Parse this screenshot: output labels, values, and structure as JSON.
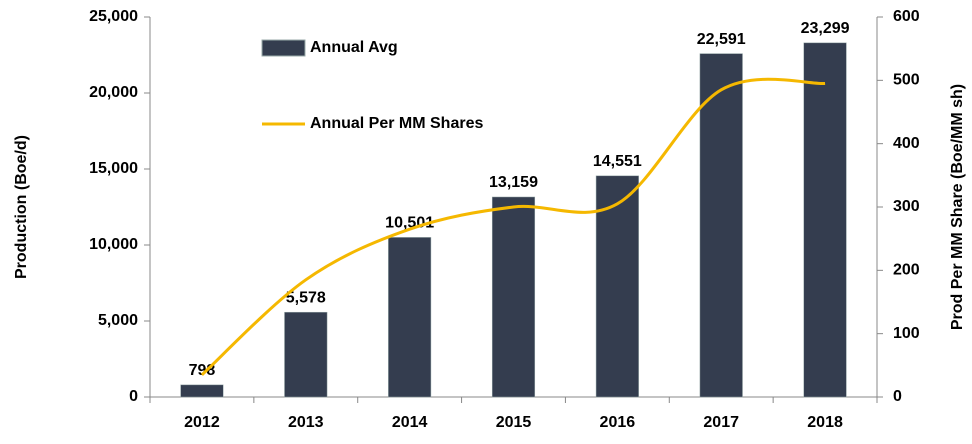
{
  "chart_data": {
    "type": "bar_line",
    "categories": [
      "2012",
      "2013",
      "2014",
      "2015",
      "2016",
      "2017",
      "2018"
    ],
    "series": [
      {
        "name": "Annual Avg",
        "type": "bar",
        "color": "#343d4f",
        "values": [
          798,
          5578,
          10501,
          13159,
          14551,
          22591,
          23299
        ],
        "value_labels": [
          "798",
          "5,578",
          "10,501",
          "13,159",
          "14,551",
          "22,591",
          "23,299"
        ]
      },
      {
        "name": "Annual Per MM Shares",
        "type": "line",
        "axis": "y2",
        "color": "#f5b800",
        "values": [
          35,
          185,
          265,
          300,
          305,
          485,
          495
        ]
      }
    ],
    "ylabel": "Production (Boe/d)",
    "y2label": "Prod Per MM Share (Boe/MM sh)",
    "ylim": [
      0,
      25000
    ],
    "yticks": [
      {
        "value": 0,
        "label": "0"
      },
      {
        "value": 5000,
        "label": "5,000"
      },
      {
        "value": 10000,
        "label": "10,000"
      },
      {
        "value": 15000,
        "label": "15,000"
      },
      {
        "value": 20000,
        "label": "20,000"
      },
      {
        "value": 25000,
        "label": "25,000"
      }
    ],
    "y2lim": [
      0,
      600
    ],
    "y2ticks": [
      0,
      100,
      200,
      300,
      400,
      500,
      600
    ]
  }
}
